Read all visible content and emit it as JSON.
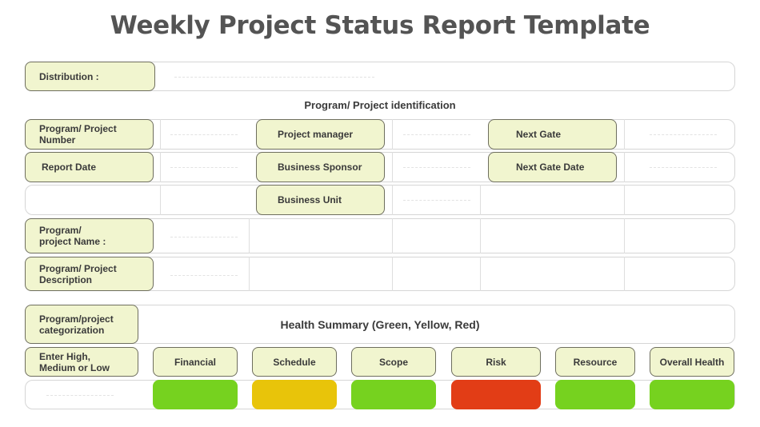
{
  "title": "Weekly Project Status Report Template",
  "distribution": {
    "label": "Distribution :"
  },
  "identification": {
    "heading": "Program/ Project identification",
    "program_number": "Program/ Project\nNumber",
    "project_manager": "Project manager",
    "next_gate": "Next Gate",
    "report_date": "Report Date",
    "business_sponsor": "Business Sponsor",
    "next_gate_date": "Next Gate Date",
    "business_unit": "Business Unit",
    "program_name": "Program/\nproject Name :",
    "program_description": "Program/ Project\nDescription"
  },
  "health": {
    "categorization": "Program/project\ncategorization",
    "summary": "Health Summary (Green, Yellow, Red)",
    "rating_label": "Enter High,\nMedium or Low",
    "categories": [
      {
        "label": "Financial",
        "status": "green",
        "color": "#76d21f"
      },
      {
        "label": "Schedule",
        "status": "yellow",
        "color": "#e8c40a"
      },
      {
        "label": "Scope",
        "status": "green",
        "color": "#76d21f"
      },
      {
        "label": "Risk",
        "status": "red",
        "color": "#e23d16"
      },
      {
        "label": "Resource",
        "status": "green",
        "color": "#76d21f"
      },
      {
        "label": "Overall Health",
        "status": "green",
        "color": "#76d21f"
      }
    ]
  },
  "colors": {
    "label_fill": "#f1f5cf",
    "label_border": "#6e6e5e",
    "frame_border": "#d6d6d6"
  }
}
